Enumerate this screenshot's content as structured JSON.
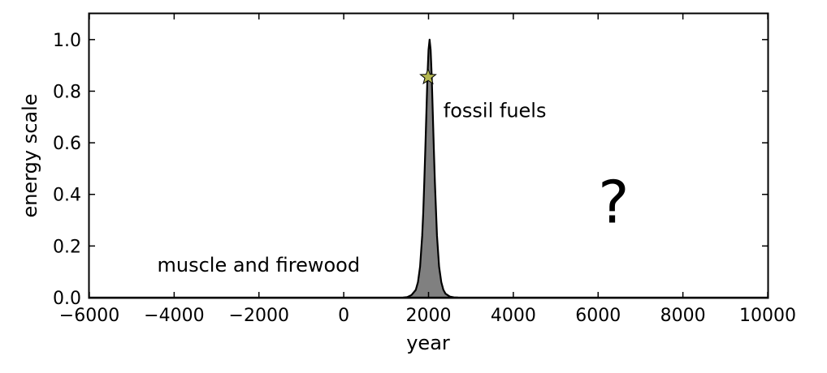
{
  "chart_data": {
    "type": "area",
    "title": "",
    "xlabel": "year",
    "ylabel": "energy scale",
    "xlim": [
      -6000,
      10000
    ],
    "ylim": [
      0,
      1.1
    ],
    "xticks": [
      -6000,
      -4000,
      -2000,
      0,
      2000,
      4000,
      6000,
      8000,
      10000
    ],
    "xtick_labels": [
      "−6000",
      "−4000",
      "−2000",
      "0",
      "2000",
      "4000",
      "6000",
      "8000",
      "10000"
    ],
    "yticks": [
      0.0,
      0.2,
      0.4,
      0.6,
      0.8,
      1.0
    ],
    "ytick_labels": [
      "0.0",
      "0.2",
      "0.4",
      "0.6",
      "0.8",
      "1.0"
    ],
    "grid": false,
    "series": [
      {
        "x": [
          1400,
          1500,
          1600,
          1700,
          1750,
          1800,
          1850,
          1875,
          1900,
          1925,
          1950,
          1975,
          2000,
          2025,
          2050,
          2075,
          2100,
          2125,
          2150,
          2200,
          2250,
          2300,
          2350,
          2400,
          2500,
          2600,
          2700
        ],
        "values": [
          0.0,
          0.002,
          0.01,
          0.03,
          0.06,
          0.12,
          0.24,
          0.33,
          0.45,
          0.58,
          0.72,
          0.86,
          0.96,
          1.0,
          0.96,
          0.86,
          0.72,
          0.58,
          0.45,
          0.24,
          0.12,
          0.06,
          0.03,
          0.015,
          0.004,
          0.001,
          0.0
        ],
        "fill_color": "#808080",
        "line_color": "#000000"
      }
    ],
    "marker": {
      "x": 1990,
      "y": 0.855,
      "shape": "star",
      "color": "#b5b851"
    },
    "annotations": [
      {
        "text": "fossil fuels",
        "x": 2350,
        "y": 0.7
      },
      {
        "text": "muscle and firewood",
        "x": -4400,
        "y": 0.1
      },
      {
        "text": "?",
        "x": 6000,
        "y": 0.29
      }
    ]
  }
}
